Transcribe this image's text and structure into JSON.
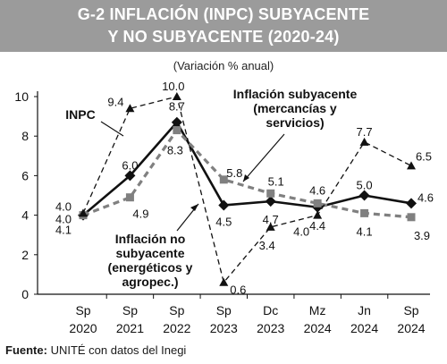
{
  "header": {
    "title_line1": "G-2     INFLACIÓN (INPC) SUBYACENTE",
    "title_line2": "Y NO SUBYACENTE (2020-24)",
    "subtitle": "(Variación % anual)"
  },
  "source": {
    "label": "Fuente:",
    "text": " UNITÉ con datos del Inegi"
  },
  "colors": {
    "inpc": "#111111",
    "subyacente": "#808080",
    "no_subyacente": "#111111",
    "header_bg": "#9b9b9b"
  },
  "chart_data": {
    "type": "line",
    "title": "INFLACIÓN (INPC) SUBYACENTE Y NO SUBYACENTE (2020-24)",
    "subtitle": "(Variación % anual)",
    "categories": [
      [
        "Sp",
        "2020"
      ],
      [
        "Sp",
        "2021"
      ],
      [
        "Sp",
        "2022"
      ],
      [
        "Sp",
        "2023"
      ],
      [
        "Dc",
        "2023"
      ],
      [
        "Mz",
        "2024"
      ],
      [
        "Jn",
        "2024"
      ],
      [
        "Sp",
        "2024"
      ]
    ],
    "ylim": [
      0,
      10
    ],
    "yticks": [
      0,
      2,
      4,
      6,
      8,
      10
    ],
    "grid": false,
    "series": [
      {
        "name": "INPC",
        "style": "solid",
        "values": [
          4.0,
          6.0,
          8.7,
          4.5,
          4.7,
          4.4,
          5.0,
          4.6
        ],
        "labels": [
          "4.0",
          "6.0",
          "8.7",
          "4.5",
          "4.7",
          "4.4",
          "5.0",
          "4.6"
        ]
      },
      {
        "name": "Inflación subyacente (mercancías y servicios)",
        "style": "dashed-thick",
        "values": [
          4.0,
          4.9,
          8.3,
          5.8,
          5.1,
          4.6,
          4.1,
          3.9
        ],
        "labels": [
          "4.0",
          "4.9",
          "8.3",
          "5.8",
          "5.1",
          "4.6",
          "4.1",
          "3.9"
        ]
      },
      {
        "name": "Inflación no subyacente (energéticos y agropec.)",
        "style": "dashed-thin",
        "values": [
          4.1,
          9.4,
          10.0,
          0.6,
          3.4,
          4.0,
          7.7,
          6.5
        ],
        "labels": [
          "4.1",
          "9.4",
          "10.0",
          "0.6",
          "3.4",
          "4.0",
          "7.7",
          "6.5"
        ]
      }
    ],
    "annotations": {
      "inpc": "INPC",
      "subyacente_lines": [
        "Inflación subyacente",
        "(mercancías y",
        "servicios)"
      ],
      "no_subyacente_lines": [
        "Inflación no",
        "subyacente",
        "(energéticos y",
        "agropec.)"
      ]
    }
  }
}
